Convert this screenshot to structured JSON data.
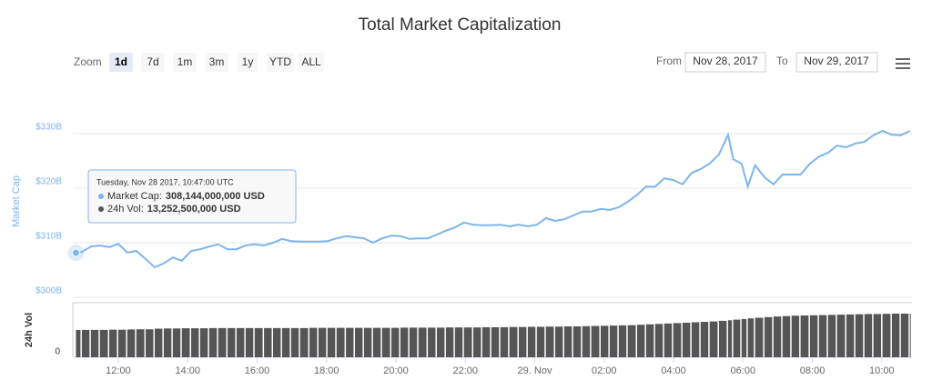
{
  "controls": {
    "zoom_label": "Zoom",
    "buttons": [
      "1d",
      "7d",
      "1m",
      "3m",
      "1y",
      "YTD",
      "ALL"
    ],
    "selected": 0,
    "from_label": "From",
    "from": "Nov 28, 2017",
    "to_label": "To",
    "to": "Nov 29, 2017"
  },
  "chart_data": {
    "type": "line",
    "title": "Total Market Capitalization",
    "x": [
      10.78,
      10.95,
      11.21,
      11.47,
      11.74,
      12.0,
      12.26,
      12.52,
      12.79,
      13.05,
      13.31,
      13.57,
      13.83,
      14.1,
      14.36,
      14.62,
      14.88,
      15.15,
      15.41,
      15.67,
      15.93,
      16.2,
      16.46,
      16.72,
      16.98,
      17.24,
      17.51,
      17.77,
      18.03,
      18.29,
      18.56,
      18.82,
      19.08,
      19.34,
      19.6,
      19.87,
      20.13,
      20.39,
      20.65,
      20.92,
      21.18,
      21.44,
      21.7,
      21.96,
      22.23,
      22.49,
      22.75,
      23.01,
      23.27,
      23.54,
      23.8,
      24.06,
      24.32,
      24.59,
      24.85,
      25.11,
      25.37,
      25.63,
      25.9,
      26.16,
      26.42,
      26.68,
      26.95,
      27.21,
      27.47,
      27.73,
      27.99,
      28.26,
      28.52,
      28.78,
      29.04,
      29.31,
      29.57,
      29.72,
      29.96,
      30.14,
      30.35,
      30.62,
      30.88,
      31.14,
      31.4,
      31.66,
      31.93,
      32.19,
      32.45,
      32.71,
      32.98,
      33.24,
      33.5,
      33.76,
      34.02,
      34.29,
      34.55,
      34.81
    ],
    "series": [
      {
        "name": "Market Cap",
        "color": "#7cb5ec",
        "values": [
          308.14,
          308.3,
          309.3,
          309.5,
          309.2,
          309.8,
          308.2,
          308.5,
          307,
          305.5,
          306.2,
          307.3,
          306.7,
          308.5,
          308.8,
          309.3,
          309.7,
          308.8,
          308.8,
          309.5,
          309.7,
          309.5,
          310,
          310.7,
          310.3,
          310.2,
          310.2,
          310.2,
          310.3,
          310.8,
          311.2,
          311,
          310.8,
          310,
          310.8,
          311.3,
          311.2,
          310.7,
          310.8,
          310.8,
          311.5,
          312.2,
          312.8,
          313.7,
          313.3,
          313.2,
          313.2,
          313.3,
          313,
          313.3,
          313,
          313.3,
          314.5,
          314,
          314.3,
          315,
          315.7,
          315.7,
          316.2,
          316,
          316.5,
          317.5,
          318.8,
          320.3,
          320.3,
          321.8,
          321.5,
          320.7,
          322.8,
          323.5,
          324.5,
          326.2,
          329.8,
          325.3,
          324.5,
          320.3,
          324.2,
          322,
          320.7,
          322.5,
          322.5,
          322.5,
          324.5,
          325.8,
          326.5,
          327.8,
          327.5,
          328.2,
          328.5,
          329.7,
          330.5,
          329.8,
          329.7,
          330.5
        ]
      },
      {
        "name": "24h Vol",
        "color": "#555555",
        "axis": "y2",
        "values": [
          13.25,
          13.3,
          13.3,
          13.3,
          13.4,
          13.4,
          13.5,
          13.6,
          13.6,
          13.9,
          14.0,
          14.0,
          14.1,
          14.1,
          14.1,
          14.2,
          14.2,
          14.2,
          14.2,
          14.2,
          14.2,
          14.2,
          14.2,
          14.2,
          14.2,
          14.2,
          14.3,
          14.3,
          14.3,
          14.3,
          14.3,
          14.3,
          14.3,
          14.3,
          14.3,
          14.3,
          14.4,
          14.4,
          14.4,
          14.4,
          14.4,
          14.5,
          14.5,
          14.5,
          14.5,
          14.6,
          14.6,
          14.6,
          14.7,
          14.7,
          14.8,
          14.8,
          14.9,
          14.9,
          15.0,
          15.0,
          15.1,
          15.2,
          15.3,
          15.4,
          15.5,
          15.6,
          15.8,
          16.0,
          16.2,
          16.4,
          16.6,
          16.8,
          17.0,
          17.2,
          17.4,
          17.7,
          18.0,
          18.3,
          18.6,
          18.9,
          19.2,
          19.5,
          19.8,
          20.0,
          20.2,
          20.3,
          20.4,
          20.5,
          20.6,
          20.7,
          20.8,
          20.9,
          21.0,
          21.0,
          21.1,
          21.2,
          21.2,
          21.3
        ]
      }
    ],
    "xlim": [
      10.69,
      34.87
    ],
    "xticks": [
      {
        "value": 12,
        "label": "12:00"
      },
      {
        "value": 14,
        "label": "14:00"
      },
      {
        "value": 16,
        "label": "16:00"
      },
      {
        "value": 18,
        "label": "18:00"
      },
      {
        "value": 20,
        "label": "20:00"
      },
      {
        "value": 22,
        "label": "22:00"
      },
      {
        "value": 24,
        "label": "29. Nov"
      },
      {
        "value": 26,
        "label": "02:00"
      },
      {
        "value": 28,
        "label": "04:00"
      },
      {
        "value": 30,
        "label": "06:00"
      },
      {
        "value": 32,
        "label": "08:00"
      },
      {
        "value": 34,
        "label": "10:00"
      }
    ],
    "ylim": [
      299,
      339.5
    ],
    "yticks": [
      {
        "value": 300,
        "label": "$300B"
      },
      {
        "value": 310,
        "label": "$310B"
      },
      {
        "value": 320,
        "label": "$320B"
      },
      {
        "value": 330,
        "label": "$330B"
      }
    ],
    "y2lim": [
      0,
      26.5
    ],
    "y2ticks": [
      0
    ],
    "grid": true,
    "tooltip": {
      "index": 0,
      "date": "Tuesday, Nov 28 2017, 10:47:00 UTC",
      "rows": [
        {
          "label": "Market Cap:",
          "value": "308,144,000,000 USD"
        },
        {
          "label": "24h Vol:",
          "value": "13,252,500,000 USD"
        }
      ]
    }
  }
}
